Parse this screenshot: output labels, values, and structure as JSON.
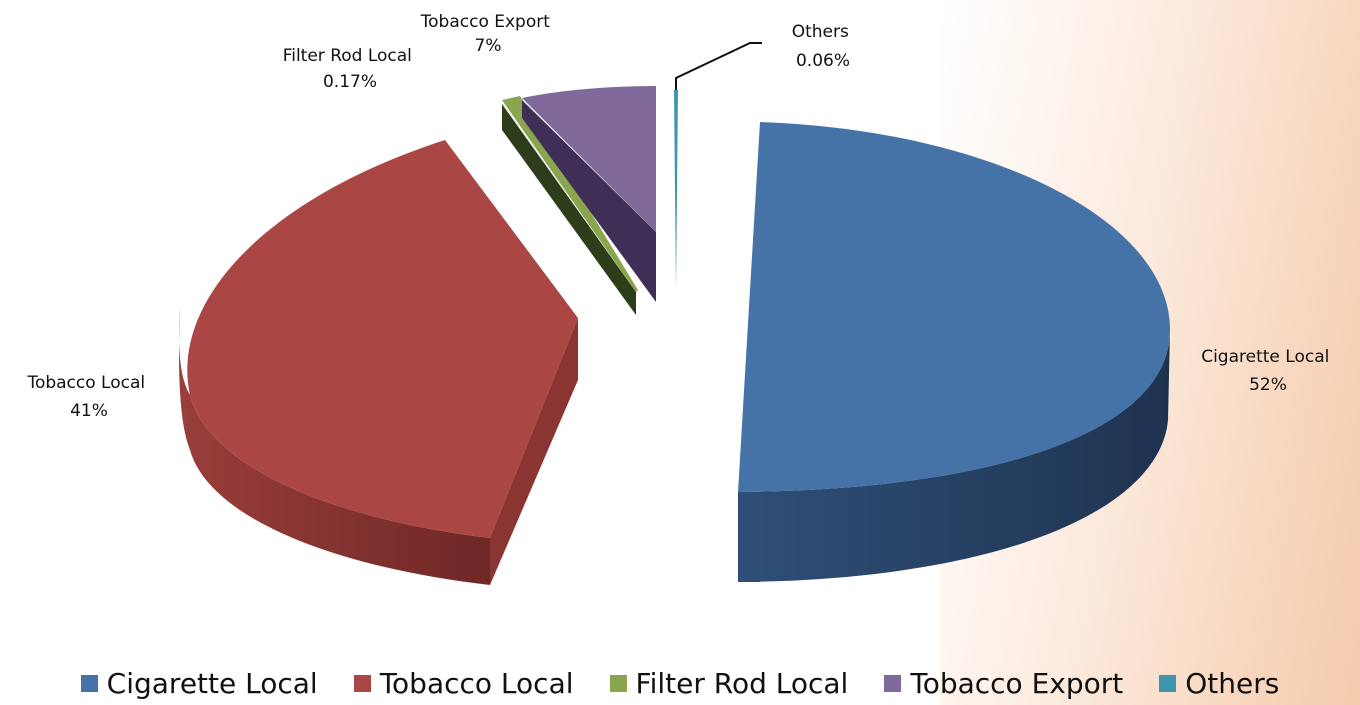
{
  "chart_data": {
    "type": "pie",
    "style": "3d-exploded",
    "title": "",
    "legend_position": "bottom",
    "slices": [
      {
        "name": "Cigarette Local",
        "value": 52,
        "label_line1": "Cigarette Local",
        "label_line2": "52%",
        "color": "#4572a7",
        "side": "#2a4668",
        "dark": "#1e3350"
      },
      {
        "name": "Tobacco Local",
        "value": 41,
        "label_line1": "Tobacco Local",
        "label_line2": "41%",
        "color": "#aa4643",
        "side": "#7a2f2d",
        "dark": "#5e2220"
      },
      {
        "name": "Filter Rod Local",
        "value": 0.17,
        "label_line1": "Filter Rod Local",
        "label_line2": "0.17%",
        "color": "#89a54e",
        "side": "#3a4f22",
        "dark": "#2d3d1a"
      },
      {
        "name": "Tobacco Export",
        "value": 7,
        "label_line1": "Tobacco Export",
        "label_line2": "7%",
        "color": "#80699b",
        "side": "#3f2f57",
        "dark": "#2f2342"
      },
      {
        "name": "Others",
        "value": 0.06,
        "label_line1": "Others",
        "label_line2": "0.06%",
        "color": "#3d96ae",
        "side": "#2c6f82",
        "dark": "#1f5262"
      }
    ]
  }
}
